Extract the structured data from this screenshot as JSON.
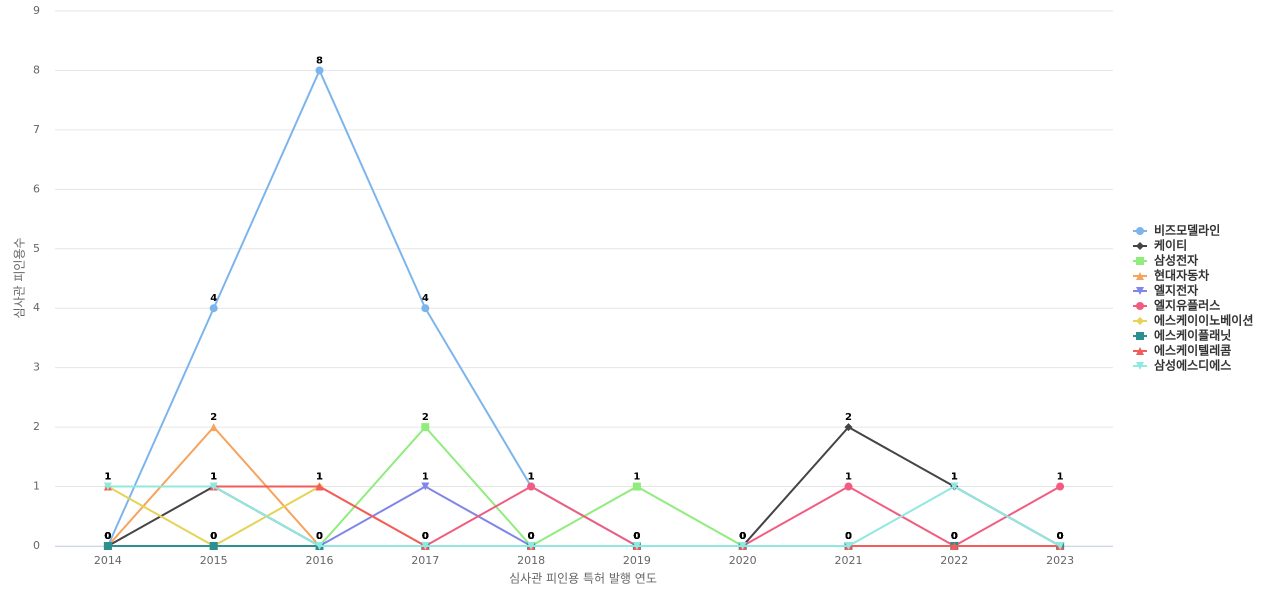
{
  "chart_data": {
    "type": "line",
    "x_label": "심사관 피인용 특허 발행 연도",
    "y_label": "심사관 피인용수",
    "categories": [
      "2014",
      "2015",
      "2016",
      "2017",
      "2018",
      "2019",
      "2020",
      "2021",
      "2022",
      "2023"
    ],
    "ylim": [
      0,
      9
    ],
    "yticks": [
      0,
      1,
      2,
      3,
      4,
      5,
      6,
      7,
      8,
      9
    ],
    "grid": true,
    "series": [
      {
        "name": "비즈모델라인",
        "color": "#7cb5ec",
        "marker": "circle",
        "values": [
          0,
          4,
          8,
          4,
          1,
          0,
          0,
          0,
          0,
          0
        ]
      },
      {
        "name": "케이티",
        "color": "#434348",
        "marker": "diamond",
        "values": [
          0,
          1,
          0,
          0,
          0,
          0,
          0,
          2,
          1,
          0
        ]
      },
      {
        "name": "삼성전자",
        "color": "#90ed7d",
        "marker": "square",
        "values": [
          0,
          0,
          0,
          2,
          0,
          1,
          0,
          0,
          0,
          0
        ]
      },
      {
        "name": "현대자동차",
        "color": "#f7a35c",
        "marker": "triangle",
        "values": [
          0,
          2,
          0,
          0,
          0,
          0,
          0,
          0,
          0,
          0
        ]
      },
      {
        "name": "엘지전자",
        "color": "#8085e9",
        "marker": "triangle-down",
        "values": [
          0,
          0,
          0,
          1,
          0,
          0,
          0,
          0,
          0,
          0
        ]
      },
      {
        "name": "엘지유플러스",
        "color": "#f15c80",
        "marker": "circle",
        "values": [
          0,
          0,
          0,
          0,
          1,
          0,
          0,
          1,
          0,
          1
        ]
      },
      {
        "name": "에스케이이노베이션",
        "color": "#e4d354",
        "marker": "diamond",
        "values": [
          1,
          0,
          1,
          0,
          0,
          0,
          0,
          0,
          0,
          0
        ]
      },
      {
        "name": "에스케이플래닛",
        "color": "#2b908f",
        "marker": "square",
        "values": [
          0,
          0,
          0,
          0,
          0,
          0,
          0,
          0,
          0,
          0
        ]
      },
      {
        "name": "에스케이텔레콤",
        "color": "#f45b5b",
        "marker": "triangle",
        "values": [
          1,
          1,
          1,
          0,
          0,
          0,
          0,
          0,
          0,
          0
        ]
      },
      {
        "name": "삼성에스디에스",
        "color": "#91e8e1",
        "marker": "triangle-down",
        "values": [
          1,
          1,
          0,
          0,
          0,
          0,
          0,
          0,
          1,
          0
        ]
      }
    ]
  }
}
